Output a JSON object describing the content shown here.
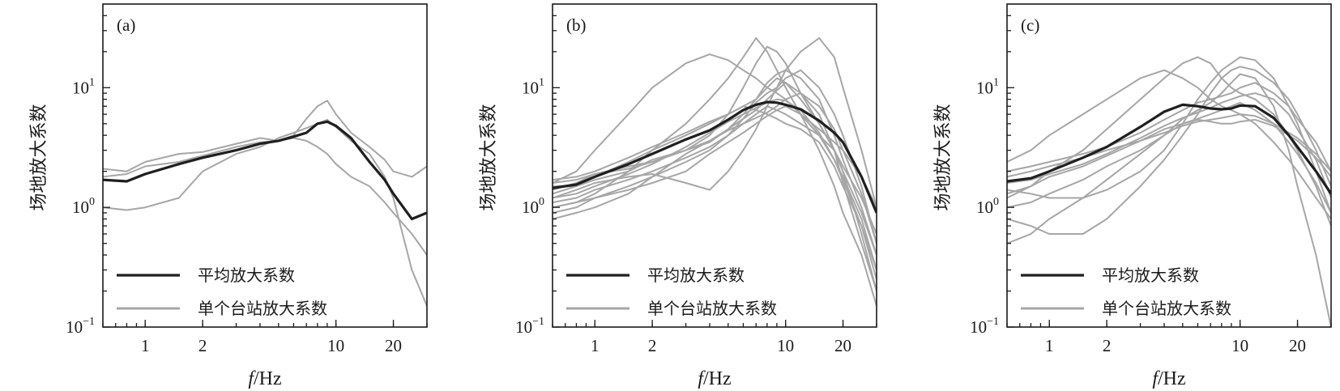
{
  "figure": {
    "ylabel": "场地放大系数",
    "xlabel_italic": "f",
    "xlabel_unit": "/Hz"
  },
  "legend": {
    "mean_label": "平均放大系数",
    "station_label": "单个台站放大系数"
  },
  "colors": {
    "mean": "#1f1f1f",
    "station": "#a6a6a6"
  },
  "chart_data": [
    {
      "type": "line",
      "panel": "(a)",
      "x_scale": "log",
      "y_scale": "log",
      "xlim": [
        0.6,
        30
      ],
      "ylim": [
        0.1,
        50
      ],
      "xticks": [
        1,
        2,
        10,
        20
      ],
      "yticks": [
        {
          "base": "10",
          "exp": "−1",
          "value": 0.1
        },
        {
          "base": "10",
          "exp": "0",
          "value": 1
        },
        {
          "base": "10",
          "exp": "1",
          "value": 10
        }
      ],
      "legend_position": "lower-left",
      "x": [
        0.6,
        0.8,
        1,
        1.5,
        2,
        3,
        4,
        5,
        6,
        7,
        8,
        9,
        10,
        12,
        15,
        18,
        20,
        25,
        30
      ],
      "mean": {
        "name": "平均放大系数",
        "values": [
          1.7,
          1.65,
          1.9,
          2.3,
          2.6,
          3.0,
          3.4,
          3.6,
          3.9,
          4.2,
          5.0,
          5.2,
          4.8,
          3.8,
          2.4,
          1.7,
          1.3,
          0.8,
          0.9
        ]
      },
      "stations": [
        {
          "values": [
            1.8,
            1.9,
            2.2,
            2.4,
            2.7,
            3.2,
            3.5,
            3.6,
            4.0,
            5.5,
            7.0,
            7.8,
            6.0,
            4.2,
            3.2,
            2.5,
            2.0,
            1.8,
            2.2
          ]
        },
        {
          "values": [
            1.0,
            0.95,
            1.0,
            1.2,
            2.0,
            2.8,
            3.2,
            3.8,
            4.2,
            4.6,
            5.0,
            5.4,
            4.7,
            3.6,
            2.8,
            1.8,
            1.2,
            0.3,
            0.15
          ]
        },
        {
          "values": [
            2.1,
            2.0,
            2.4,
            2.8,
            2.9,
            3.4,
            3.8,
            3.6,
            3.8,
            3.6,
            3.2,
            2.8,
            2.3,
            1.8,
            1.5,
            1.1,
            0.9,
            0.6,
            0.4
          ]
        }
      ]
    },
    {
      "type": "line",
      "panel": "(b)",
      "x_scale": "log",
      "y_scale": "log",
      "xlim": [
        0.6,
        30
      ],
      "ylim": [
        0.1,
        50
      ],
      "xticks": [
        1,
        2,
        10,
        20
      ],
      "yticks": [
        {
          "base": "10",
          "exp": "−1",
          "value": 0.1
        },
        {
          "base": "10",
          "exp": "0",
          "value": 1
        },
        {
          "base": "10",
          "exp": "1",
          "value": 10
        }
      ],
      "legend_position": "lower-left",
      "x": [
        0.6,
        0.8,
        1,
        1.5,
        2,
        3,
        4,
        5,
        6,
        7,
        8,
        9,
        10,
        12,
        15,
        18,
        20,
        25,
        30
      ],
      "mean": {
        "name": "平均放大系数",
        "values": [
          1.45,
          1.55,
          1.8,
          2.3,
          2.8,
          3.7,
          4.4,
          5.4,
          6.5,
          7.2,
          7.6,
          7.5,
          7.2,
          6.6,
          5.3,
          4.2,
          3.5,
          1.8,
          0.9
        ]
      },
      "stations": [
        {
          "values": [
            1.6,
            2.0,
            3.0,
            6.0,
            10.0,
            16.0,
            19.0,
            17.0,
            14.0,
            12.0,
            10.0,
            9.0,
            8.0,
            6.0,
            4.0,
            2.5,
            1.8,
            0.8,
            0.3
          ]
        },
        {
          "values": [
            1.5,
            1.5,
            1.7,
            2.0,
            2.5,
            3.0,
            4.0,
            6.0,
            10.0,
            16.0,
            22.0,
            20.0,
            16.0,
            9.0,
            5.0,
            3.0,
            2.0,
            0.6,
            0.2
          ]
        },
        {
          "values": [
            1.2,
            1.4,
            1.6,
            1.8,
            1.9,
            1.6,
            1.4,
            2.0,
            3.0,
            4.5,
            7.0,
            10.0,
            14.0,
            20.0,
            26.0,
            18.0,
            10.0,
            3.0,
            1.0
          ]
        },
        {
          "values": [
            1.0,
            1.1,
            1.3,
            2.0,
            3.0,
            5.0,
            8.0,
            12.0,
            18.0,
            26.0,
            20.0,
            14.0,
            10.0,
            6.0,
            3.0,
            1.5,
            0.9,
            0.4,
            0.15
          ]
        },
        {
          "values": [
            0.8,
            0.9,
            1.0,
            1.3,
            1.8,
            2.8,
            3.6,
            4.5,
            5.5,
            6.5,
            8.0,
            9.5,
            11.0,
            9.0,
            6.0,
            3.0,
            1.6,
            0.5,
            0.2
          ]
        },
        {
          "values": [
            1.3,
            1.5,
            1.8,
            2.4,
            3.0,
            4.0,
            5.0,
            6.0,
            7.0,
            8.0,
            10.0,
            12.0,
            11.0,
            8.0,
            5.0,
            3.0,
            2.0,
            0.9,
            0.4
          ]
        },
        {
          "values": [
            1.1,
            1.2,
            1.4,
            1.7,
            2.0,
            2.6,
            3.2,
            4.0,
            5.0,
            6.0,
            7.0,
            6.5,
            6.0,
            5.0,
            4.0,
            3.0,
            2.2,
            1.2,
            0.6
          ]
        },
        {
          "values": [
            1.7,
            1.8,
            2.0,
            2.6,
            3.2,
            4.2,
            5.2,
            6.0,
            7.0,
            6.5,
            6.0,
            5.5,
            5.0,
            4.5,
            3.5,
            2.2,
            1.5,
            0.7,
            0.3
          ]
        },
        {
          "values": [
            0.9,
            1.0,
            1.2,
            1.5,
            1.8,
            2.4,
            3.0,
            4.0,
            5.5,
            7.5,
            9.0,
            10.0,
            12.0,
            14.0,
            10.0,
            6.0,
            4.0,
            1.5,
            0.5
          ]
        },
        {
          "values": [
            1.4,
            1.6,
            1.9,
            2.2,
            2.4,
            3.0,
            3.5,
            4.5,
            6.0,
            8.0,
            11.0,
            13.0,
            14.0,
            12.0,
            8.0,
            4.0,
            2.5,
            1.0,
            0.4
          ]
        },
        {
          "values": [
            1.0,
            1.1,
            1.2,
            1.4,
            1.6,
            2.0,
            2.8,
            3.5,
            4.2,
            5.0,
            5.8,
            6.5,
            7.0,
            6.0,
            4.5,
            3.5,
            3.0,
            1.8,
            1.0
          ]
        },
        {
          "values": [
            1.6,
            1.7,
            1.9,
            2.1,
            2.4,
            3.0,
            3.6,
            4.4,
            5.0,
            5.6,
            6.2,
            7.0,
            8.0,
            9.0,
            7.0,
            4.5,
            3.0,
            1.3,
            0.5
          ]
        },
        {
          "values": [
            1.2,
            1.3,
            1.5,
            1.9,
            2.3,
            3.2,
            4.2,
            5.2,
            6.0,
            6.8,
            7.5,
            8.0,
            7.8,
            6.5,
            4.2,
            2.5,
            1.7,
            0.7,
            0.25
          ]
        }
      ]
    },
    {
      "type": "line",
      "panel": "(c)",
      "x_scale": "log",
      "y_scale": "log",
      "xlim": [
        0.6,
        30
      ],
      "ylim": [
        0.1,
        50
      ],
      "xticks": [
        1,
        2,
        10,
        20
      ],
      "yticks": [
        {
          "base": "10",
          "exp": "−1",
          "value": 0.1
        },
        {
          "base": "10",
          "exp": "0",
          "value": 1
        },
        {
          "base": "10",
          "exp": "1",
          "value": 10
        }
      ],
      "legend_position": "lower-left",
      "x": [
        0.6,
        0.8,
        1,
        1.5,
        2,
        3,
        4,
        5,
        6,
        7,
        8,
        9,
        10,
        12,
        15,
        18,
        20,
        25,
        30
      ],
      "mean": {
        "name": "平均放大系数",
        "values": [
          1.65,
          1.75,
          2.0,
          2.6,
          3.2,
          4.7,
          6.3,
          7.2,
          7.0,
          6.7,
          6.6,
          6.7,
          7.1,
          7.0,
          5.6,
          4.0,
          3.2,
          2.0,
          1.3
        ]
      },
      "stations": [
        {
          "values": [
            2.4,
            3.0,
            4.0,
            6.0,
            8.0,
            12.0,
            14.0,
            12.0,
            10.0,
            8.0,
            7.0,
            6.5,
            6.0,
            5.0,
            3.5,
            2.5,
            2.0,
            1.2,
            0.8
          ]
        },
        {
          "values": [
            1.2,
            1.5,
            2.0,
            3.0,
            4.5,
            8.0,
            12.0,
            16.0,
            18.0,
            16.0,
            12.0,
            10.0,
            9.0,
            8.0,
            6.0,
            4.0,
            3.0,
            1.5,
            0.7
          ]
        },
        {
          "values": [
            1.4,
            1.3,
            1.2,
            1.2,
            1.4,
            2.0,
            3.0,
            5.0,
            8.0,
            11.0,
            14.0,
            16.0,
            18.0,
            17.0,
            12.0,
            7.0,
            5.0,
            2.0,
            0.9
          ]
        },
        {
          "values": [
            0.8,
            0.7,
            0.6,
            0.6,
            0.8,
            1.5,
            2.5,
            4.0,
            6.0,
            9.0,
            12.0,
            14.0,
            15.0,
            14.0,
            11.0,
            8.0,
            6.0,
            3.0,
            1.5
          ]
        },
        {
          "values": [
            2.0,
            2.2,
            2.4,
            2.8,
            3.2,
            4.2,
            5.4,
            6.5,
            7.5,
            8.0,
            8.5,
            9.0,
            10.0,
            11.0,
            9.0,
            7.0,
            5.5,
            3.5,
            2.0
          ]
        },
        {
          "values": [
            1.6,
            1.7,
            1.9,
            2.3,
            2.8,
            3.8,
            4.8,
            5.6,
            6.2,
            6.8,
            7.5,
            8.0,
            8.5,
            9.0,
            8.0,
            6.0,
            4.5,
            2.5,
            1.2
          ]
        },
        {
          "values": [
            1.0,
            1.1,
            1.3,
            1.7,
            2.2,
            3.0,
            4.0,
            5.0,
            5.5,
            6.0,
            6.5,
            7.0,
            7.5,
            6.5,
            5.0,
            3.5,
            2.8,
            1.6,
            0.9
          ]
        },
        {
          "values": [
            1.3,
            1.5,
            1.8,
            2.2,
            2.7,
            3.6,
            4.5,
            5.0,
            5.4,
            5.2,
            5.0,
            5.0,
            5.2,
            5.4,
            4.8,
            4.0,
            3.6,
            2.6,
            1.8
          ]
        },
        {
          "values": [
            0.5,
            0.6,
            0.8,
            1.2,
            1.7,
            2.8,
            4.0,
            5.5,
            6.5,
            7.5,
            9.0,
            11.0,
            13.0,
            12.0,
            7.0,
            3.0,
            1.5,
            0.4,
            0.1
          ]
        },
        {
          "values": [
            1.8,
            2.0,
            2.2,
            2.6,
            3.0,
            3.6,
            4.2,
            4.8,
            5.2,
            5.4,
            5.6,
            5.8,
            6.0,
            5.8,
            5.0,
            4.2,
            3.8,
            2.8,
            2.0
          ]
        }
      ]
    }
  ]
}
